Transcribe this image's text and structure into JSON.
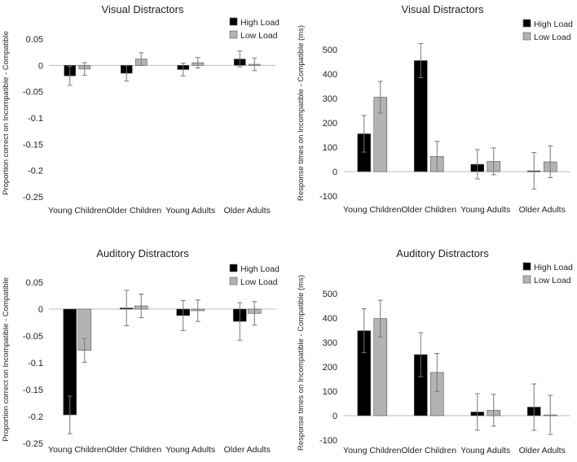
{
  "chart_data": [
    {
      "type": "bar",
      "title": "Visual Distractors",
      "ylabel": "Proportion correct  on Incompatible - Compatible",
      "xlabel": "",
      "categories": [
        "Young Children",
        "Older Children",
        "Young Adults",
        "Older Adults"
      ],
      "ylim": [
        -0.25,
        0.05
      ],
      "yticks": [
        0.05,
        0,
        -0.05,
        -0.1,
        -0.15,
        -0.2,
        -0.25
      ],
      "ytick_labels": [
        "0.05",
        "0",
        "-0.05",
        "-0.1",
        "-0.15",
        "-0.2",
        "-0.25"
      ],
      "legend_position": "top-right",
      "series": [
        {
          "name": "High Load",
          "color": "#000000",
          "values": [
            -0.02,
            -0.015,
            -0.008,
            0.012
          ],
          "errors": [
            0.018,
            0.015,
            0.012,
            0.015
          ]
        },
        {
          "name": "Low Load",
          "color": "#b3b3b3",
          "values": [
            -0.007,
            0.012,
            0.005,
            0.002
          ],
          "errors": [
            0.012,
            0.012,
            0.01,
            0.012
          ]
        }
      ]
    },
    {
      "type": "bar",
      "title": "Visual Distractors",
      "ylabel": "Response times on Incompatible - Compatible (ms)",
      "xlabel": "",
      "categories": [
        "Young Children",
        "Older Children",
        "Young Adults",
        "Older Adults"
      ],
      "ylim": [
        -100,
        500
      ],
      "yticks": [
        500,
        400,
        300,
        200,
        100,
        0,
        -100
      ],
      "ytick_labels": [
        "500",
        "400",
        "300",
        "200",
        "100",
        "0",
        "-100"
      ],
      "legend_position": "top-right",
      "series": [
        {
          "name": "High Load",
          "color": "#000000",
          "values": [
            155,
            455,
            30,
            3
          ],
          "errors": [
            75,
            70,
            60,
            75
          ]
        },
        {
          "name": "Low Load",
          "color": "#b3b3b3",
          "values": [
            305,
            62,
            42,
            40
          ],
          "errors": [
            65,
            62,
            55,
            65
          ]
        }
      ]
    },
    {
      "type": "bar",
      "title": "Auditory Distractors",
      "ylabel": "Proportion correct  on Incompatible - Compatible",
      "xlabel": "",
      "categories": [
        "Young Children",
        "Older Children",
        "Young Adults",
        "Older Adults"
      ],
      "ylim": [
        -0.25,
        0.05
      ],
      "yticks": [
        0.05,
        0,
        -0.05,
        -0.1,
        -0.15,
        -0.2,
        -0.25
      ],
      "ytick_labels": [
        "0.05",
        "0",
        "-0.05",
        "-0.1",
        "-0.15",
        "-0.2",
        "-0.25"
      ],
      "legend_position": "top-right",
      "series": [
        {
          "name": "High Load",
          "color": "#000000",
          "values": [
            -0.197,
            0.002,
            -0.012,
            -0.023
          ],
          "errors": [
            0.035,
            0.033,
            0.028,
            0.035
          ]
        },
        {
          "name": "Low Load",
          "color": "#b3b3b3",
          "values": [
            -0.077,
            0.006,
            -0.003,
            -0.008
          ],
          "errors": [
            0.022,
            0.022,
            0.02,
            0.022
          ]
        }
      ]
    },
    {
      "type": "bar",
      "title": "Auditory Distractors",
      "ylabel": "Response times on Incompatible - Compatible (ms)",
      "xlabel": "",
      "categories": [
        "Young Children",
        "Older Children",
        "Young Adults",
        "Older Adults"
      ],
      "ylim": [
        -100,
        500
      ],
      "yticks": [
        500,
        400,
        300,
        200,
        100,
        0,
        -100
      ],
      "ytick_labels": [
        "500",
        "400",
        "300",
        "200",
        "100",
        "0",
        "-100"
      ],
      "legend_position": "top-right",
      "series": [
        {
          "name": "High Load",
          "color": "#000000",
          "values": [
            348,
            250,
            15,
            35
          ],
          "errors": [
            90,
            90,
            75,
            95
          ]
        },
        {
          "name": "Low Load",
          "color": "#b3b3b3",
          "values": [
            398,
            177,
            22,
            3
          ],
          "errors": [
            75,
            78,
            65,
            80
          ]
        }
      ]
    }
  ]
}
